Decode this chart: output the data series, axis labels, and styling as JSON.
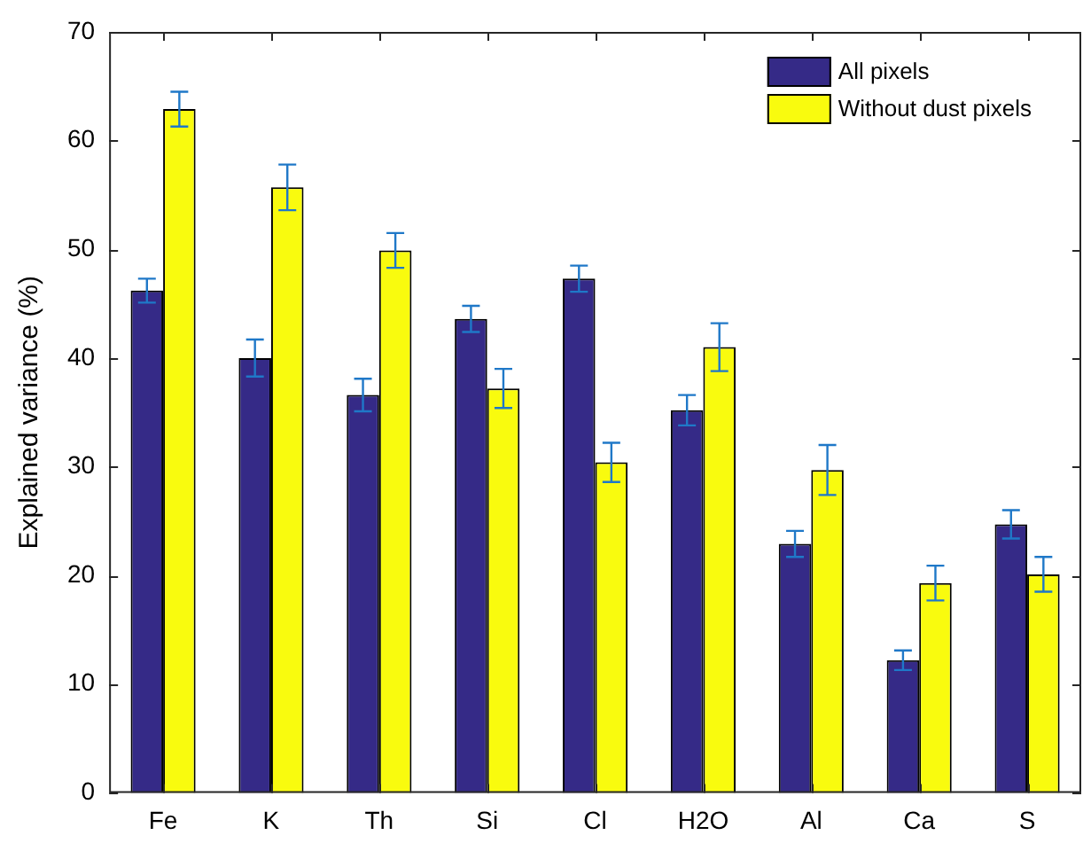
{
  "chart_data": {
    "type": "bar",
    "ylabel": "Explained variance (%)",
    "categories": [
      "Fe",
      "K",
      "Th",
      "Si",
      "Cl",
      "H2O",
      "Al",
      "Ca",
      "S"
    ],
    "series": [
      {
        "name": "All pixels",
        "color": "#352a87",
        "values": [
          46.2,
          40.0,
          36.6,
          43.6,
          47.3,
          35.2,
          22.9,
          12.2,
          24.7
        ],
        "errors": [
          1.1,
          1.7,
          1.5,
          1.2,
          1.2,
          1.4,
          1.2,
          0.9,
          1.3
        ]
      },
      {
        "name": "Without dust pixels",
        "color": "#f9fb0e",
        "values": [
          62.9,
          55.7,
          49.9,
          37.2,
          30.4,
          41.0,
          29.7,
          19.3,
          20.1
        ],
        "errors": [
          1.6,
          2.1,
          1.6,
          1.8,
          1.8,
          2.2,
          2.3,
          1.6,
          1.6
        ]
      }
    ],
    "ylim": [
      0,
      70
    ],
    "yticks": [
      0,
      10,
      20,
      30,
      40,
      50,
      60,
      70
    ],
    "grid": false,
    "legend": "top right"
  }
}
